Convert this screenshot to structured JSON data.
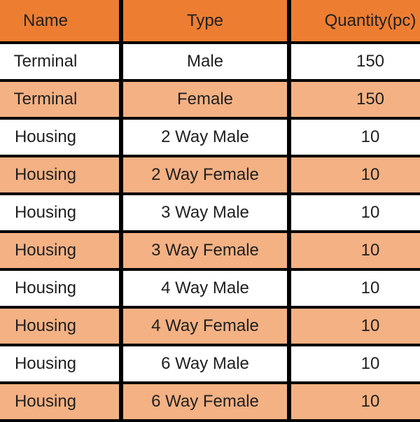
{
  "table": {
    "columns": [
      "Name",
      "Type",
      "Quantity(pc)"
    ],
    "rows": [
      [
        "Terminal",
        "Male",
        "150"
      ],
      [
        "Terminal",
        "Female",
        "150"
      ],
      [
        "Housing",
        "2 Way Male",
        "10"
      ],
      [
        "Housing",
        "2 Way Female",
        "10"
      ],
      [
        "Housing",
        "3 Way Male",
        "10"
      ],
      [
        "Housing",
        "3 Way Female",
        "10"
      ],
      [
        "Housing",
        "4 Way Male",
        "10"
      ],
      [
        "Housing",
        "4 Way Female",
        "10"
      ],
      [
        "Housing",
        "6 Way Male",
        "10"
      ],
      [
        "Housing",
        "6 Way Female",
        "10"
      ]
    ]
  },
  "colors": {
    "header_bg": "#ED7D31",
    "alt_row_bg": "#F4B183",
    "row_bg": "#FFFFFF",
    "border": "#000000",
    "text": "#1F1F1F"
  },
  "chart_data": {
    "type": "table",
    "title": "",
    "columns": [
      "Name",
      "Type",
      "Quantity(pc)"
    ],
    "rows": [
      {
        "name": "Terminal",
        "type": "Male",
        "quantity_pc": 150
      },
      {
        "name": "Terminal",
        "type": "Female",
        "quantity_pc": 150
      },
      {
        "name": "Housing",
        "type": "2 Way Male",
        "quantity_pc": 10
      },
      {
        "name": "Housing",
        "type": "2 Way Female",
        "quantity_pc": 10
      },
      {
        "name": "Housing",
        "type": "3 Way Male",
        "quantity_pc": 10
      },
      {
        "name": "Housing",
        "type": "3 Way Female",
        "quantity_pc": 10
      },
      {
        "name": "Housing",
        "type": "4 Way Male",
        "quantity_pc": 10
      },
      {
        "name": "Housing",
        "type": "4 Way Female",
        "quantity_pc": 10
      },
      {
        "name": "Housing",
        "type": "6 Way Male",
        "quantity_pc": 10
      },
      {
        "name": "Housing",
        "type": "6 Way Female",
        "quantity_pc": 10
      }
    ],
    "layout": {
      "header_fill": "#ED7D31",
      "banded_rows": true,
      "band_fill": "#F4B183",
      "grid": "black",
      "cropped_edges": [
        "left",
        "right",
        "bottom"
      ]
    }
  }
}
